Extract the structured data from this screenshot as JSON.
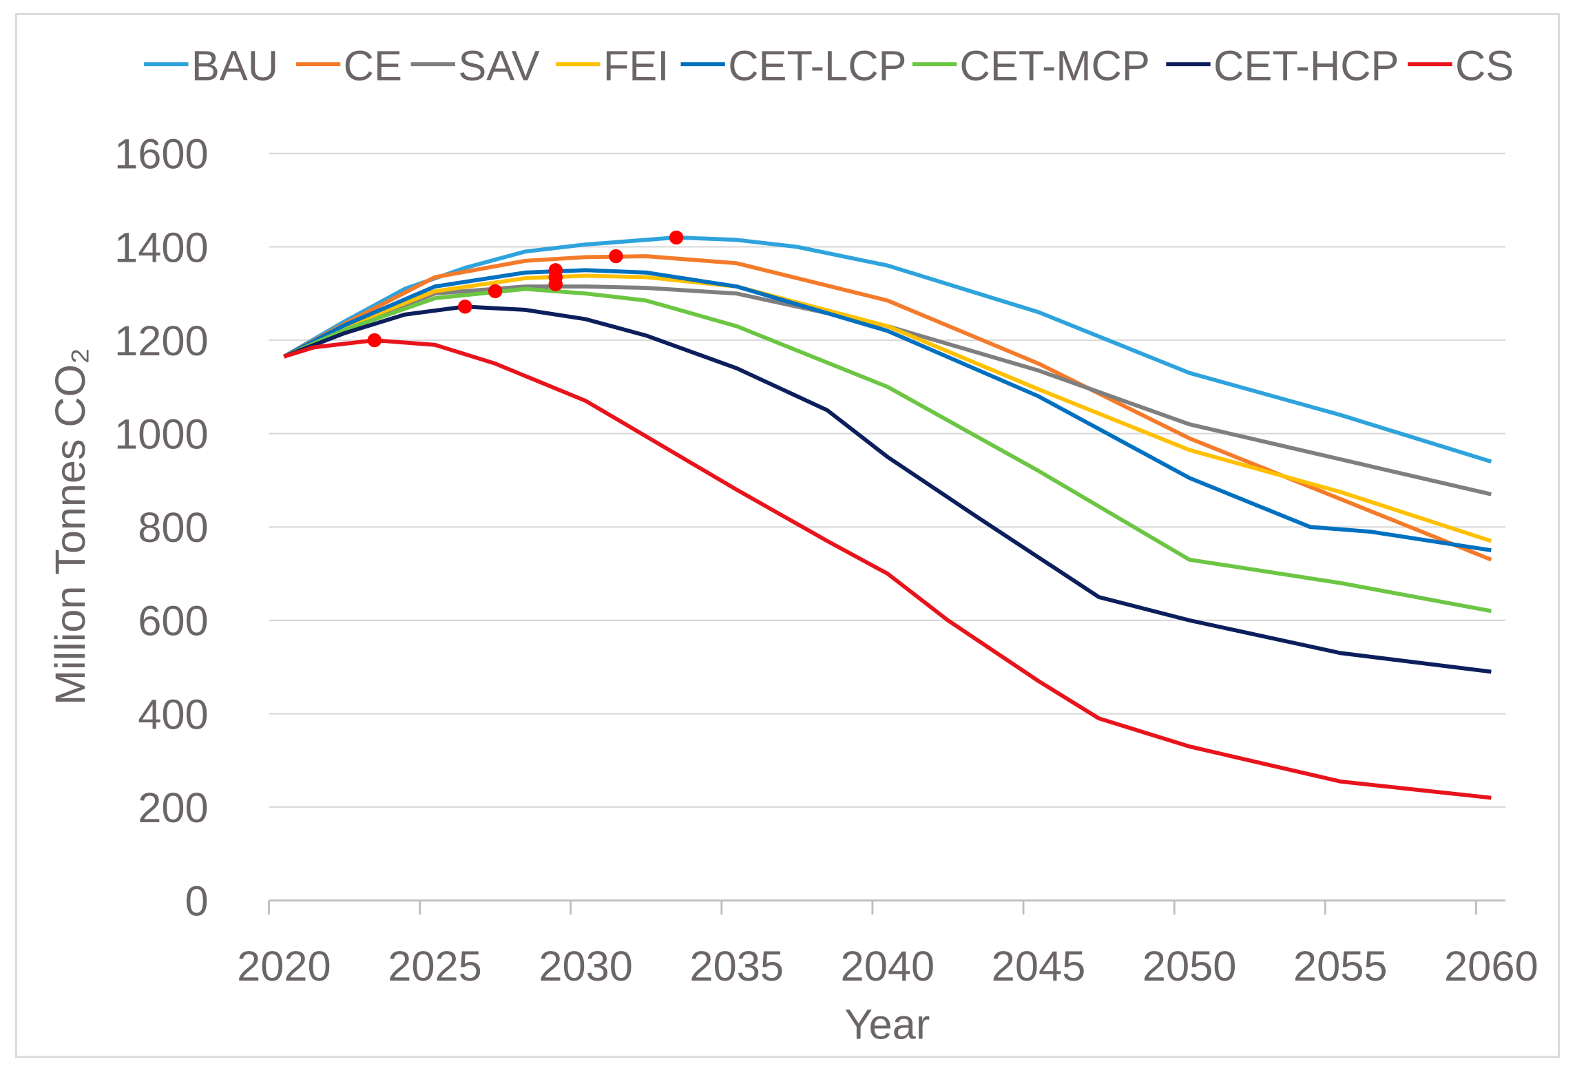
{
  "chart_data": {
    "type": "line",
    "title": "",
    "xlabel": "Year",
    "ylabel": "Million Tonnes CO₂",
    "ylim": [
      0,
      1600
    ],
    "xlim": [
      2020,
      2060
    ],
    "yticks": [
      "0",
      "200",
      "400",
      "600",
      "800",
      "1000",
      "1200",
      "1400",
      "1600"
    ],
    "xticks": [
      "2020",
      "2025",
      "2030",
      "2035",
      "2040",
      "2045",
      "2050",
      "2055",
      "2060"
    ],
    "grid": "horizontal",
    "legend_position": "top",
    "series": [
      {
        "name": "BAU",
        "color": "#2ea3dc",
        "x": [
          2020,
          2022,
          2024,
          2026,
          2028,
          2030,
          2032,
          2033,
          2035,
          2037,
          2040,
          2045,
          2050,
          2055,
          2060
        ],
        "y": [
          1165,
          1240,
          1310,
          1355,
          1390,
          1405,
          1415,
          1420,
          1415,
          1400,
          1360,
          1260,
          1130,
          1040,
          940
        ],
        "peak": [
          2033,
          1420
        ]
      },
      {
        "name": "CE",
        "color": "#f47b2a",
        "x": [
          2020,
          2022,
          2025,
          2028,
          2030,
          2032,
          2035,
          2040,
          2045,
          2050,
          2055,
          2060
        ],
        "y": [
          1165,
          1235,
          1335,
          1370,
          1378,
          1380,
          1365,
          1285,
          1150,
          990,
          860,
          730
        ],
        "peak": [
          2031,
          1380
        ]
      },
      {
        "name": "SAV",
        "color": "#7f7f7f",
        "x": [
          2020,
          2022,
          2025,
          2028,
          2030,
          2032,
          2035,
          2040,
          2045,
          2050,
          2055,
          2060
        ],
        "y": [
          1165,
          1225,
          1300,
          1315,
          1315,
          1312,
          1300,
          1230,
          1135,
          1020,
          945,
          870
        ],
        "peak": [
          2029,
          1320
        ]
      },
      {
        "name": "FEI",
        "color": "#ffc000",
        "x": [
          2020,
          2022,
          2025,
          2028,
          2030,
          2032,
          2035,
          2040,
          2045,
          2050,
          2055,
          2060
        ],
        "y": [
          1165,
          1228,
          1305,
          1333,
          1338,
          1335,
          1315,
          1230,
          1095,
          965,
          875,
          770
        ],
        "peak": [
          2029,
          1335
        ]
      },
      {
        "name": "CET-LCP",
        "color": "#0070c0",
        "x": [
          2020,
          2022,
          2025,
          2028,
          2030,
          2032,
          2035,
          2040,
          2045,
          2050,
          2054,
          2056,
          2060
        ],
        "y": [
          1165,
          1232,
          1315,
          1345,
          1350,
          1345,
          1315,
          1220,
          1080,
          905,
          800,
          790,
          750
        ],
        "peak": [
          2029,
          1350
        ]
      },
      {
        "name": "CET-MCP",
        "color": "#6cc644",
        "x": [
          2020,
          2022,
          2025,
          2028,
          2030,
          2032,
          2035,
          2040,
          2045,
          2050,
          2055,
          2060
        ],
        "y": [
          1165,
          1222,
          1290,
          1310,
          1300,
          1285,
          1230,
          1100,
          920,
          730,
          680,
          620
        ],
        "peak": [
          2027,
          1305
        ]
      },
      {
        "name": "CET-HCP",
        "color": "#0c1f5c",
        "x": [
          2020,
          2022,
          2024,
          2026,
          2028,
          2030,
          2032,
          2035,
          2038,
          2040,
          2043,
          2047,
          2050,
          2055,
          2060
        ],
        "y": [
          1165,
          1215,
          1255,
          1272,
          1265,
          1245,
          1210,
          1140,
          1050,
          950,
          820,
          650,
          600,
          530,
          490
        ],
        "peak": [
          2026,
          1272
        ]
      },
      {
        "name": "CS",
        "color": "#e8141c",
        "x": [
          2020,
          2021,
          2023,
          2025,
          2027,
          2030,
          2035,
          2038,
          2040,
          2042,
          2045,
          2047,
          2050,
          2055,
          2060
        ],
        "y": [
          1165,
          1185,
          1200,
          1190,
          1150,
          1070,
          880,
          770,
          700,
          600,
          470,
          390,
          330,
          255,
          220
        ],
        "peak": [
          2023,
          1200
        ]
      }
    ]
  }
}
